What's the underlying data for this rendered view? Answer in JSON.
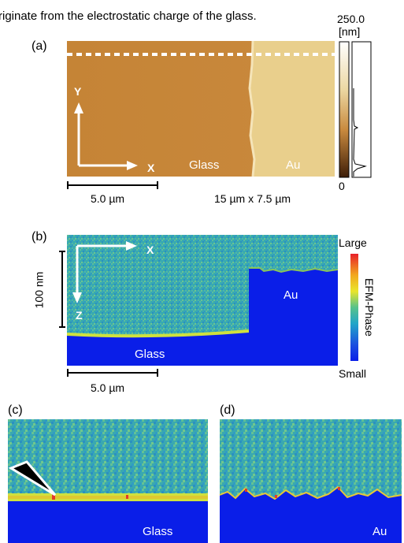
{
  "caption_fragment": "riginate from the electrostatic charge of the glass.",
  "panels": {
    "a": {
      "label": "(a)",
      "axis_y": "Y",
      "axis_x": "X",
      "region_left": "Glass",
      "region_right": "Au",
      "scale_bar": "5.0 µm",
      "scan_size": "15 µm x 7.5 µm",
      "colorbar_max": "250.0",
      "colorbar_unit": "[nm]",
      "colorbar_min": "0"
    },
    "b": {
      "label": "(b)",
      "axis_x": "X",
      "axis_z": "Z",
      "depth_scale": "100 nm",
      "region_left": "Glass",
      "region_right": "Au",
      "scale_bar": "5.0 µm",
      "colorbar_top": "Large",
      "colorbar_bottom": "Small",
      "colorbar_title": "EFM-Phase"
    },
    "c": {
      "label": "(c)",
      "region": "Glass"
    },
    "d": {
      "label": "(d)",
      "region": "Au"
    }
  },
  "colors": {
    "glass_topo": "#c98a3e",
    "au_topo": "#e8cd8a",
    "efm_background": "#34a7b5",
    "efm_substrate": "#0b1ee8",
    "efm_edge": "#d6e23a"
  }
}
